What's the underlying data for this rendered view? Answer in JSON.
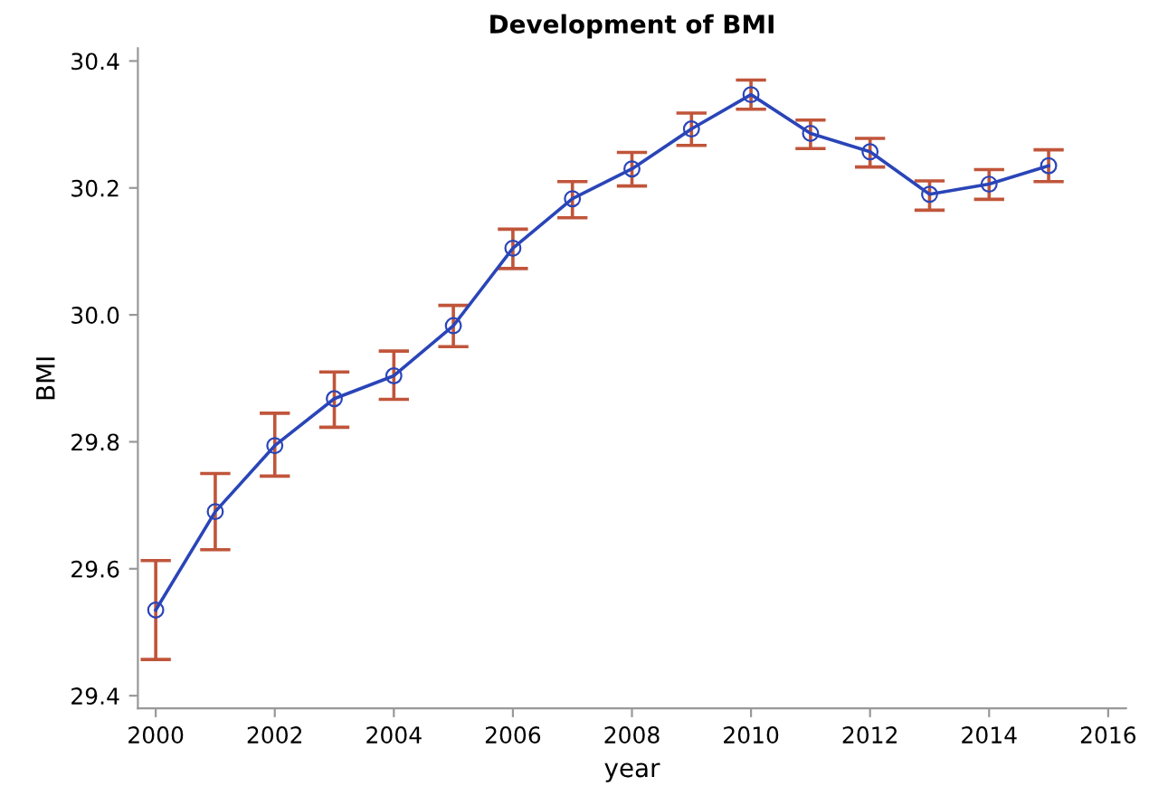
{
  "chart_data": {
    "type": "line",
    "title": "Development of BMI",
    "xlabel": "year",
    "ylabel": "BMI",
    "x": [
      2000,
      2001,
      2002,
      2003,
      2004,
      2005,
      2006,
      2007,
      2008,
      2009,
      2010,
      2011,
      2012,
      2013,
      2014,
      2015
    ],
    "series": [
      {
        "color": "#2a45b8",
        "values": [
          29.535,
          29.69,
          29.794,
          29.868,
          29.904,
          29.983,
          30.105,
          30.183,
          30.23,
          30.293,
          30.347,
          30.286,
          30.257,
          30.19,
          30.206,
          30.235
        ],
        "errors": [
          [
            29.457,
            29.613
          ],
          [
            29.63,
            29.75
          ],
          [
            29.746,
            29.845
          ],
          [
            29.823,
            29.91
          ],
          [
            29.867,
            29.943
          ],
          [
            29.95,
            30.015
          ],
          [
            30.073,
            30.135
          ],
          [
            30.153,
            30.21
          ],
          [
            30.203,
            30.256
          ],
          [
            30.267,
            30.318
          ],
          [
            30.324,
            30.37
          ],
          [
            30.262,
            30.307
          ],
          [
            30.233,
            30.278
          ],
          [
            30.165,
            30.211
          ],
          [
            30.182,
            30.229
          ],
          [
            30.21,
            30.26
          ]
        ]
      }
    ],
    "marker": "circle",
    "line_style": "solid",
    "grid": false,
    "legend": false,
    "xlim": [
      1999.7,
      2016.3
    ],
    "ylim": [
      29.38,
      30.42
    ],
    "xticks": [
      2000,
      2002,
      2004,
      2006,
      2008,
      2010,
      2012,
      2014,
      2016
    ],
    "yticks": [
      {
        "value": 29.4,
        "label": "29.4"
      },
      {
        "value": 29.6,
        "label": "29.6"
      },
      {
        "value": 29.8,
        "label": "29.8"
      },
      {
        "value": 30.0,
        "label": "30.0"
      },
      {
        "value": 30.2,
        "label": "30.2"
      },
      {
        "value": 30.4,
        "label": "30.4"
      }
    ]
  }
}
